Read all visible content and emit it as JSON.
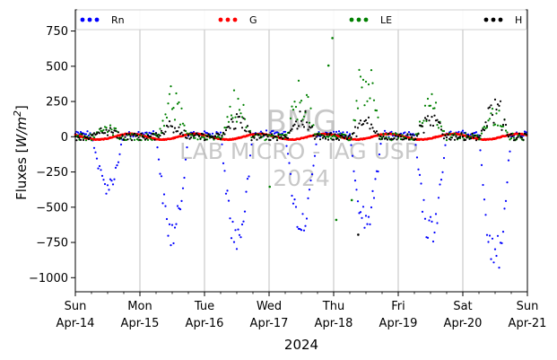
{
  "chart_data": {
    "type": "scatter",
    "ylabel_text": "Fluxes [",
    "ylabel_unit": "W/m",
    "ylabel_exp": "2",
    "ylabel_close": "]",
    "xlabel": "2024",
    "ylim": [
      -1100,
      900
    ],
    "xlim": [
      0,
      7
    ],
    "yticks": [
      750,
      500,
      250,
      0,
      -250,
      -500,
      -750,
      -1000
    ],
    "ytick_labels": [
      "750",
      "500",
      "250",
      "0",
      "−250",
      "−500",
      "−750",
      "−1000"
    ],
    "xticks": [
      {
        "pos": 0,
        "day": "Sun",
        "date": "Apr-14"
      },
      {
        "pos": 1,
        "day": "Mon",
        "date": "Apr-15"
      },
      {
        "pos": 2,
        "day": "Tue",
        "date": "Apr-16"
      },
      {
        "pos": 3,
        "day": "Wed",
        "date": "Apr-17"
      },
      {
        "pos": 4,
        "day": "Thu",
        "date": "Apr-18"
      },
      {
        "pos": 5,
        "day": "Fri",
        "date": "Apr-19"
      },
      {
        "pos": 6,
        "day": "Sat",
        "date": "Apr-20"
      },
      {
        "pos": 7,
        "day": "Sun",
        "date": "Apr-21"
      }
    ],
    "grid": "vertical",
    "legend_position": "top",
    "watermark": [
      "BMG",
      "LAB MICRO - IAG USP",
      "2024"
    ],
    "series": [
      {
        "name": "Rn",
        "color": "#0000ff",
        "daily_min": [
          -420,
          -800,
          -830,
          -720,
          -690,
          -780,
          -1000
        ],
        "night": 30
      },
      {
        "name": "G",
        "color": "#ff0000",
        "amplitude": 20
      },
      {
        "name": "LE",
        "color": "#008000",
        "daily_max": [
          80,
          380,
          360,
          420,
          700,
          330,
          220
        ],
        "outliers": [
          [
            3.01,
            -355
          ],
          [
            3.92,
            505
          ],
          [
            3.98,
            700
          ],
          [
            4.04,
            -590
          ],
          [
            4.28,
            -450
          ]
        ]
      },
      {
        "name": "H",
        "color": "#000000",
        "daily_max": [
          60,
          120,
          170,
          180,
          140,
          180,
          290
        ],
        "outliers": [
          [
            4.38,
            -695
          ]
        ]
      }
    ]
  }
}
